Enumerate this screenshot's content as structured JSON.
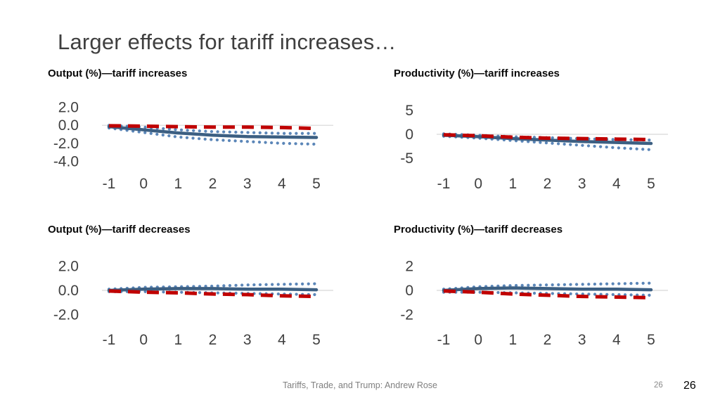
{
  "slide": {
    "title": "Larger effects for tariff increases…",
    "footer": {
      "center": "Tariffs, Trade, and Trump: Andrew Rose",
      "page_small": "26",
      "page_corner": "26"
    }
  },
  "colors": {
    "solid_line": "#3c5f82",
    "dashed_line": "#c00000",
    "dotted_band": "#5b86b8",
    "gridline": "#d6d6d6",
    "axis_text": "#404040",
    "chart_title_text": "#0a0a0a",
    "slide_title_text": "#3f3f3f",
    "footer_text": "#7f7f7f"
  },
  "chart_data": [
    {
      "type": "line",
      "title": "Output (%)—tariff increases",
      "xlabel": "",
      "ylabel": "",
      "x": [
        -1,
        0,
        1,
        2,
        3,
        4,
        5
      ],
      "xticks": [
        "-1",
        "0",
        "1",
        "2",
        "3",
        "4",
        "5"
      ],
      "ytick_values": [
        2,
        0,
        -2,
        -4
      ],
      "ytick_labels": [
        "2.0",
        "0.0",
        "-2.0",
        "-4.0"
      ],
      "ylim": [
        -4.9,
        2.9
      ],
      "grid": "zero-line-only",
      "legend": "none",
      "series": [
        {
          "name": "dotted-upper-band",
          "style": "dotted",
          "values": [
            0.0,
            -0.2,
            -0.5,
            -0.7,
            -0.8,
            -0.9,
            -0.9
          ]
        },
        {
          "name": "dotted-lower-band",
          "style": "dotted",
          "values": [
            -0.3,
            -0.8,
            -1.3,
            -1.6,
            -1.8,
            -2.0,
            -2.1
          ]
        },
        {
          "name": "solid-blue-line",
          "style": "solid",
          "values": [
            -0.15,
            -0.5,
            -0.85,
            -1.1,
            -1.25,
            -1.3,
            -1.35
          ]
        },
        {
          "name": "dashed-red-line",
          "style": "dashed",
          "values": [
            -0.05,
            -0.1,
            -0.15,
            -0.2,
            -0.2,
            -0.25,
            -0.35
          ]
        }
      ]
    },
    {
      "type": "line",
      "title": "Productivity (%)—tariff increases",
      "xlabel": "",
      "ylabel": "",
      "x": [
        -1,
        0,
        1,
        2,
        3,
        4,
        5
      ],
      "xticks": [
        "-1",
        "0",
        "1",
        "2",
        "3",
        "4",
        "5"
      ],
      "ytick_values": [
        5,
        0,
        -5
      ],
      "ytick_labels": [
        "5",
        "0",
        "-5"
      ],
      "ylim": [
        -7.3,
        7.3
      ],
      "grid": "zero-line-only",
      "legend": "none",
      "series": [
        {
          "name": "dotted-upper-band",
          "style": "dotted",
          "values": [
            0.1,
            -0.2,
            -0.5,
            -0.7,
            -0.9,
            -1.1,
            -1.2
          ]
        },
        {
          "name": "dotted-lower-band",
          "style": "dotted",
          "values": [
            -0.4,
            -0.8,
            -1.3,
            -1.8,
            -2.3,
            -2.8,
            -3.2
          ]
        },
        {
          "name": "solid-blue-line",
          "style": "solid",
          "values": [
            -0.2,
            -0.5,
            -0.9,
            -1.2,
            -1.5,
            -1.7,
            -1.9
          ]
        },
        {
          "name": "dashed-red-line",
          "style": "dashed",
          "values": [
            -0.1,
            -0.3,
            -0.6,
            -0.8,
            -0.9,
            -1.0,
            -1.1
          ]
        }
      ]
    },
    {
      "type": "line",
      "title": "Output (%)—tariff decreases",
      "xlabel": "",
      "ylabel": "",
      "x": [
        -1,
        0,
        1,
        2,
        3,
        4,
        5
      ],
      "xticks": [
        "-1",
        "0",
        "1",
        "2",
        "3",
        "4",
        "5"
      ],
      "ytick_values": [
        2,
        0,
        -2
      ],
      "ytick_labels": [
        "2.0",
        "0.0",
        "-2.0"
      ],
      "ylim": [
        -2.9,
        2.9
      ],
      "grid": "zero-line-only",
      "legend": "none",
      "series": [
        {
          "name": "dotted-upper-band",
          "style": "dotted",
          "values": [
            0.1,
            0.25,
            0.3,
            0.35,
            0.45,
            0.5,
            0.55
          ]
        },
        {
          "name": "dotted-lower-band",
          "style": "dotted",
          "values": [
            -0.1,
            -0.1,
            -0.15,
            -0.2,
            -0.25,
            -0.3,
            -0.35
          ]
        },
        {
          "name": "solid-blue-line",
          "style": "solid",
          "values": [
            0.0,
            0.1,
            0.15,
            0.15,
            0.1,
            0.1,
            0.05
          ]
        },
        {
          "name": "dashed-red-line",
          "style": "dashed",
          "values": [
            -0.05,
            -0.15,
            -0.2,
            -0.3,
            -0.35,
            -0.45,
            -0.5
          ]
        }
      ]
    },
    {
      "type": "line",
      "title": "Productivity (%)—tariff decreases",
      "xlabel": "",
      "ylabel": "",
      "x": [
        -1,
        0,
        1,
        2,
        3,
        4,
        5
      ],
      "xticks": [
        "-1",
        "0",
        "1",
        "2",
        "3",
        "4",
        "5"
      ],
      "ytick_values": [
        2,
        0,
        -2
      ],
      "ytick_labels": [
        "2",
        "0",
        "-2"
      ],
      "ylim": [
        -2.9,
        2.9
      ],
      "grid": "zero-line-only",
      "legend": "none",
      "series": [
        {
          "name": "dotted-upper-band",
          "style": "dotted",
          "values": [
            0.1,
            0.3,
            0.4,
            0.45,
            0.5,
            0.55,
            0.6
          ]
        },
        {
          "name": "dotted-lower-band",
          "style": "dotted",
          "values": [
            -0.15,
            -0.15,
            -0.2,
            -0.25,
            -0.3,
            -0.35,
            -0.4
          ]
        },
        {
          "name": "solid-blue-line",
          "style": "solid",
          "values": [
            0.0,
            0.15,
            0.2,
            0.15,
            0.1,
            0.1,
            0.05
          ]
        },
        {
          "name": "dashed-red-line",
          "style": "dashed",
          "values": [
            -0.05,
            -0.15,
            -0.3,
            -0.4,
            -0.5,
            -0.55,
            -0.6
          ]
        }
      ]
    }
  ]
}
